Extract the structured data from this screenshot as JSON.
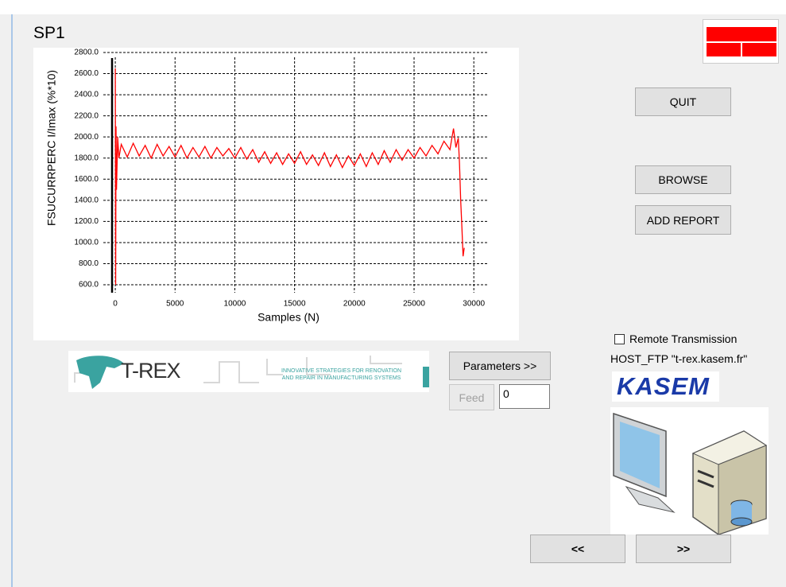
{
  "chart_data": {
    "type": "line",
    "title": "SP1",
    "x_label": "Samples (N)",
    "y_label": "FSUCURRPERC I/Imax (%*10)",
    "color": "#ff0000",
    "grid": true,
    "x": [
      0,
      30,
      60,
      100,
      200,
      300,
      500,
      1000,
      1500,
      2000,
      2500,
      3000,
      3500,
      4000,
      4500,
      5000,
      5500,
      6000,
      6500,
      7000,
      7500,
      8000,
      8500,
      9000,
      9500,
      10000,
      10500,
      11000,
      11500,
      12000,
      12500,
      13000,
      13500,
      14000,
      14500,
      15000,
      15500,
      16000,
      16500,
      17000,
      17500,
      18000,
      18500,
      19000,
      19500,
      20000,
      20500,
      21000,
      21500,
      22000,
      22500,
      23000,
      23500,
      24000,
      24500,
      25000,
      25500,
      26000,
      26500,
      27000,
      27500,
      28000,
      28300,
      28500,
      28700,
      28800,
      28900,
      29000,
      29100,
      29200
    ],
    "values": [
      2650,
      600,
      2100,
      1500,
      2000,
      1800,
      1930,
      1810,
      1940,
      1820,
      1920,
      1800,
      1930,
      1820,
      1910,
      1810,
      1920,
      1800,
      1900,
      1810,
      1910,
      1800,
      1900,
      1820,
      1890,
      1800,
      1900,
      1790,
      1880,
      1760,
      1860,
      1750,
      1850,
      1740,
      1840,
      1750,
      1860,
      1740,
      1830,
      1730,
      1850,
      1720,
      1830,
      1710,
      1820,
      1730,
      1840,
      1720,
      1850,
      1740,
      1870,
      1760,
      1880,
      1780,
      1880,
      1800,
      1900,
      1820,
      1920,
      1840,
      1960,
      1880,
      2080,
      1900,
      1990,
      1750,
      1400,
      1150,
      870,
      950
    ],
    "xlim": [
      -470,
      31250
    ],
    "xticks": [
      0,
      5000,
      10000,
      15000,
      20000,
      25000,
      30000
    ],
    "ylim": [
      525,
      2830
    ],
    "yticks": [
      {
        "value": 600,
        "label": "600.0"
      },
      {
        "value": 800,
        "label": "800.0"
      },
      {
        "value": 1000,
        "label": "1000.0"
      },
      {
        "value": 1200,
        "label": "1200.0"
      },
      {
        "value": 1400,
        "label": "1400.0"
      },
      {
        "value": 1600,
        "label": "1600.0"
      },
      {
        "value": 1800,
        "label": "1800.0"
      },
      {
        "value": 2000,
        "label": "2000.0"
      },
      {
        "value": 2200,
        "label": "2200.0"
      },
      {
        "value": 2400,
        "label": "2400.0"
      },
      {
        "value": 2600,
        "label": "2600.0"
      },
      {
        "value": 2800,
        "label": "2800.0"
      }
    ]
  },
  "buttons": {
    "quit": "QUIT",
    "browse": "BROWSE",
    "add_report": "ADD REPORT",
    "parameters": "Parameters >>",
    "feed": "Feed",
    "prev": "<<",
    "next": ">>"
  },
  "feed_input": "0",
  "remote_transmission": "Remote Transmission",
  "host_ftp": "HOST_FTP \"t-rex.kasem.fr\"",
  "trex_logo": {
    "name": "T-REX",
    "tagline": [
      "INNOVATIVE STRATEGIES FOR RENOVATION",
      "AND REPAIR IN MANUFACTURING SYSTEMS"
    ]
  },
  "kasem_logo": "KASEM"
}
